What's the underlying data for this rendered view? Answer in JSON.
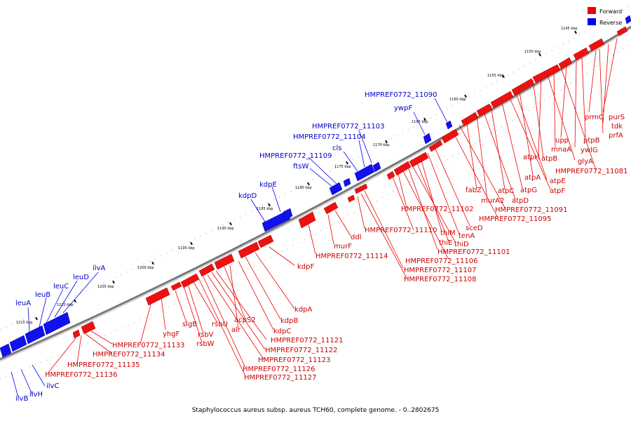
{
  "caption": "Staphylococcus aureus subsp. aureus TCH60, complete genome. - 0..2802675",
  "legend": [
    {
      "label": "Forward",
      "color": "#ee0000"
    },
    {
      "label": "Reverse",
      "color": "#0000ee"
    }
  ],
  "colors": {
    "forward": "#ee0000",
    "reverse": "#0000ee",
    "backbone": "#777777"
  },
  "ticks": [
    "1145 kbp",
    "1150 kbp",
    "1155 kbp",
    "1160 kbp",
    "1165 kbp",
    "1170 kbp",
    "1175 kbp",
    "1180 kbp",
    "1185 kbp",
    "1190 kbp",
    "1195 kbp",
    "1200 kbp",
    "1205 kbp",
    "1210 kbp",
    "1215 kbp"
  ],
  "forward_labels": [
    "purS",
    "tdk",
    "prmC",
    "prfA",
    "ptpB",
    "ywlG",
    "upp",
    "mnaA",
    "atpH",
    "atpB",
    "glyA",
    "HMPREF0772_11081",
    "atpA",
    "atpE",
    "atpF",
    "atpC",
    "atpG",
    "fabZ",
    "murA2",
    "atpD",
    "HMPREF0772_11091",
    "HMPREF0772_11095",
    "sceD",
    "tenA",
    "thiM",
    "thiE",
    "thiD",
    "HMPREF0772_11102",
    "HMPREF0772_11110",
    "HMPREF0772_11101",
    "HMPREF0772_11106",
    "HMPREF0772_11107",
    "HMPREF0772_11108",
    "ddl",
    "murF",
    "HMPREF0772_11114",
    "kdpF",
    "kdpA",
    "kdpB",
    "kdpC",
    "acpS2",
    "alr",
    "rsbU",
    "rsbV",
    "rsbW",
    "sigB",
    "yhgF",
    "HMPREF0772_11121",
    "HMPREF0772_11122",
    "HMPREF0772_11123",
    "HMPREF0772_11126",
    "HMPREF0772_11127",
    "HMPREF0772_11133",
    "HMPREF0772_11134",
    "HMPREF0772_11135",
    "HMPREF0772_11136"
  ],
  "reverse_labels": [
    "HMPREF0772_11090",
    "ywpF",
    "HMPREF0772_11103",
    "HMPREF0772_11104",
    "cls",
    "HMPREF0772_11109",
    "ftsW",
    "kdpE",
    "kdpD",
    "ilvA",
    "leuD",
    "leuC",
    "leuB",
    "leuA",
    "ilvC",
    "ilvH",
    "ilvB"
  ]
}
